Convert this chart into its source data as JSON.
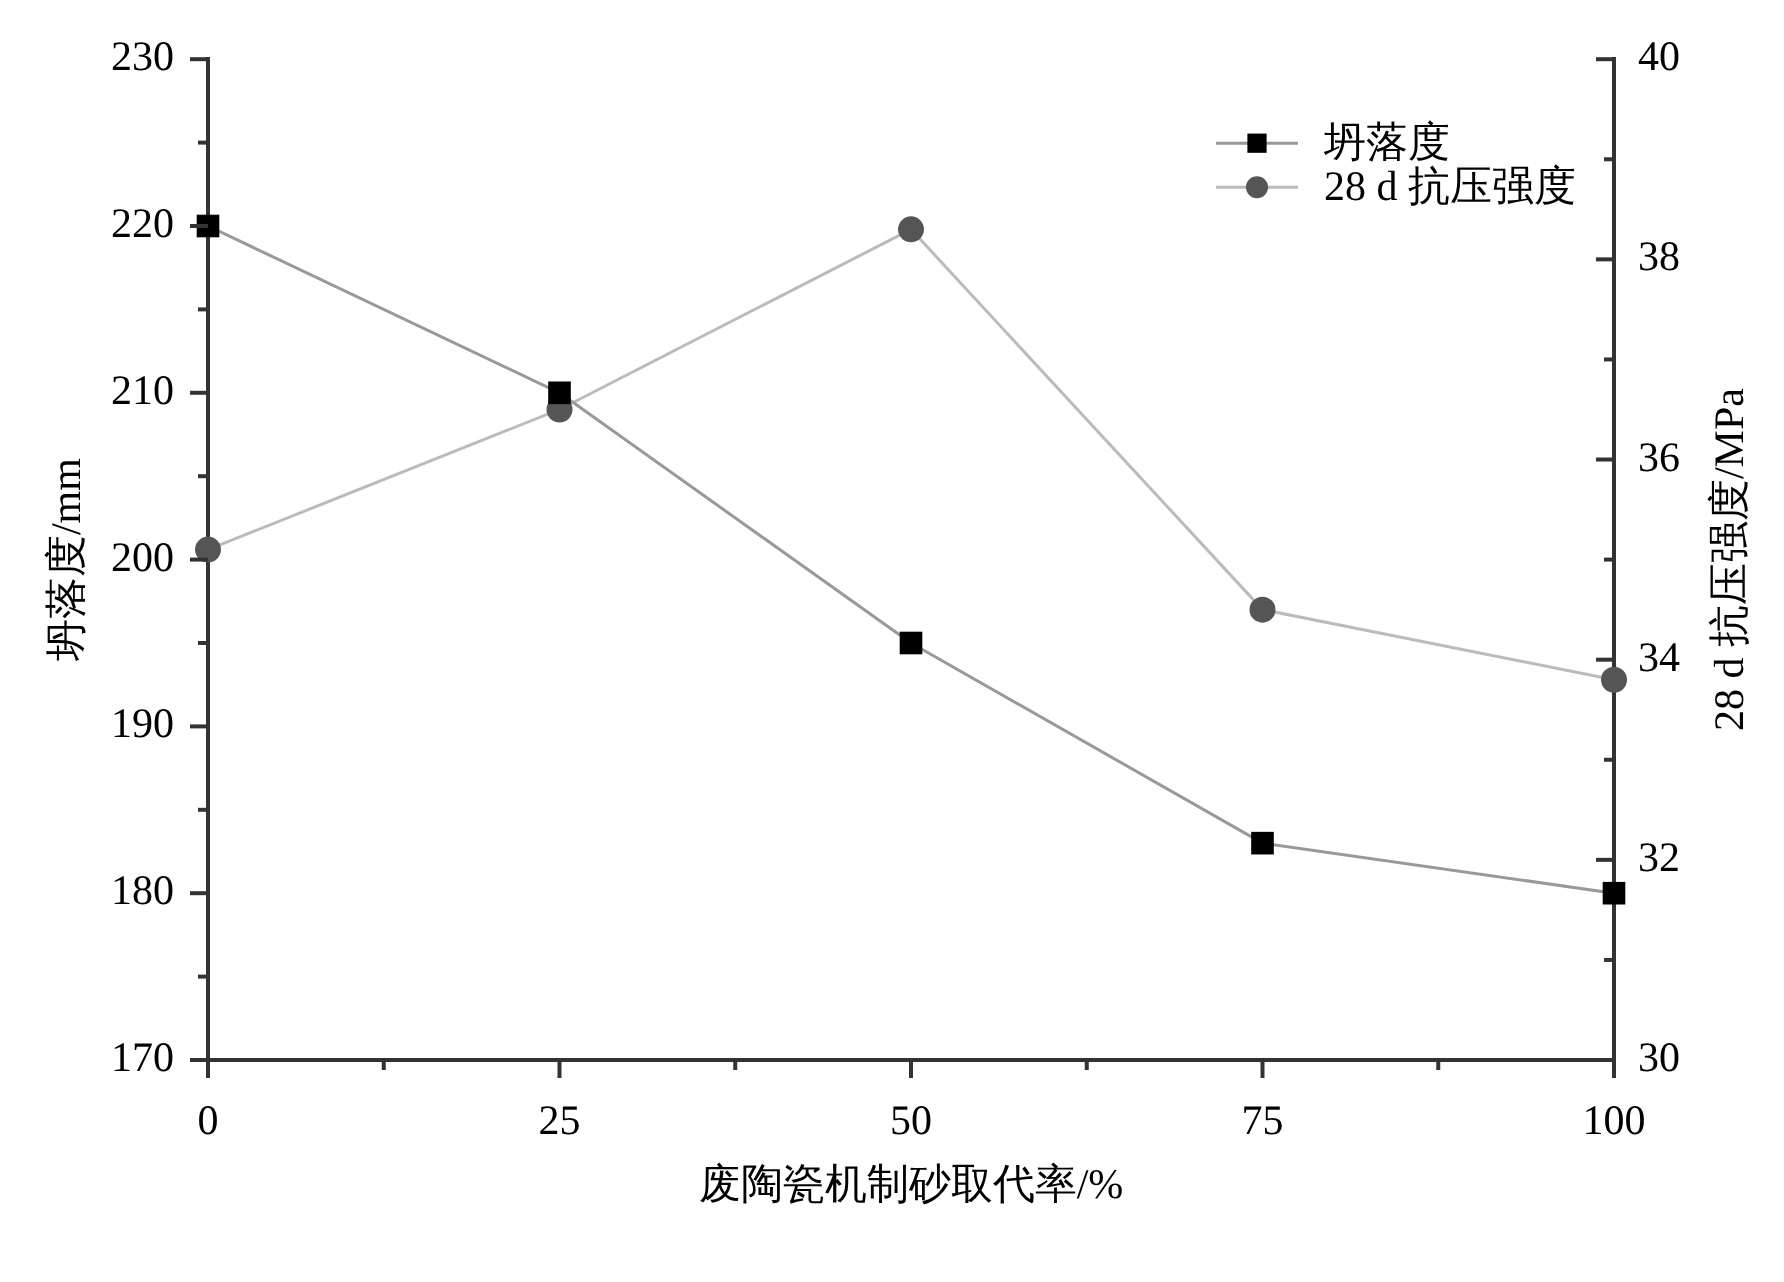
{
  "chart_data": {
    "type": "line",
    "xlabel": "废陶瓷机制砂取代率/%",
    "ylabel": "坍落度/mm",
    "y2label": "28 d 抗压强度/MPa",
    "x": [
      0,
      25,
      50,
      75,
      100
    ],
    "series": [
      {
        "name": "坍落度",
        "color": "#000000",
        "marker": "square",
        "values": [
          220,
          210,
          195,
          183,
          180
        ]
      },
      {
        "name": "28 d 抗压强度",
        "color": "#555555",
        "marker": "circle",
        "axis": "y2",
        "values": [
          35.1,
          36.5,
          38.3,
          34.5,
          33.8
        ]
      }
    ],
    "xlim": [
      0,
      100
    ],
    "xticks": [
      0,
      {
        "value": 12.5,
        "label": null
      },
      25,
      {
        "value": 37.5,
        "label": null
      },
      50,
      {
        "value": 62.5,
        "label": null
      },
      75,
      {
        "value": 87.5,
        "label": null
      },
      100
    ],
    "ylim": [
      170,
      230
    ],
    "yticks": [
      170,
      {
        "value": 175,
        "label": null
      },
      180,
      {
        "value": 185,
        "label": null
      },
      190,
      {
        "value": 195,
        "label": null
      },
      200,
      {
        "value": 205,
        "label": null
      },
      210,
      {
        "value": 215,
        "label": null
      },
      220,
      {
        "value": 225,
        "label": null
      },
      230
    ],
    "y2lim": [
      30,
      40
    ],
    "y2ticks": [
      30,
      {
        "value": 31,
        "label": null
      },
      32,
      {
        "value": 33,
        "label": null
      },
      34,
      {
        "value": 35,
        "label": null
      },
      36,
      {
        "value": 37,
        "label": null
      },
      38,
      {
        "value": 39,
        "label": null
      },
      40
    ],
    "legend": "top right",
    "grid": false,
    "line_style": "solid"
  }
}
